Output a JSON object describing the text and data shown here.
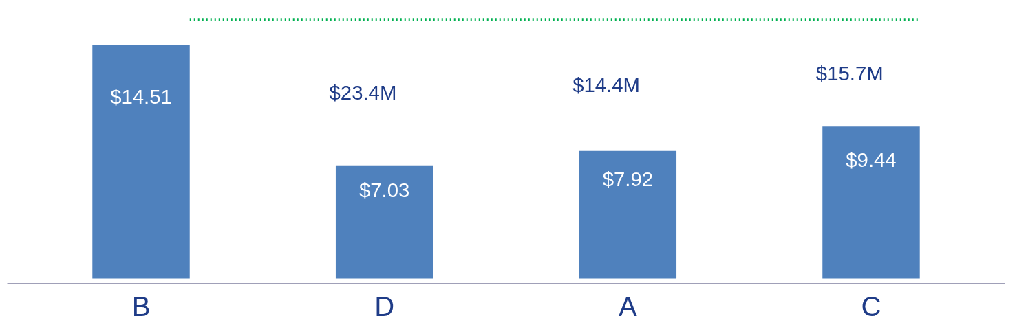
{
  "chart_data": {
    "type": "bar",
    "categories": [
      "B",
      "D",
      "A",
      "C"
    ],
    "values": [
      14.51,
      7.03,
      7.92,
      9.44
    ],
    "color": "#4f81bd",
    "value_labels": [
      "$14.51",
      "$7.03",
      "$7.92",
      "$9.44"
    ],
    "ref_lines": [
      {
        "axis": "y",
        "value": 16.1,
        "color": "#00b050",
        "line_style": "dotted"
      }
    ],
    "annotations": [
      "$23.4M",
      "$14.4M",
      "$15.7M"
    ]
  }
}
